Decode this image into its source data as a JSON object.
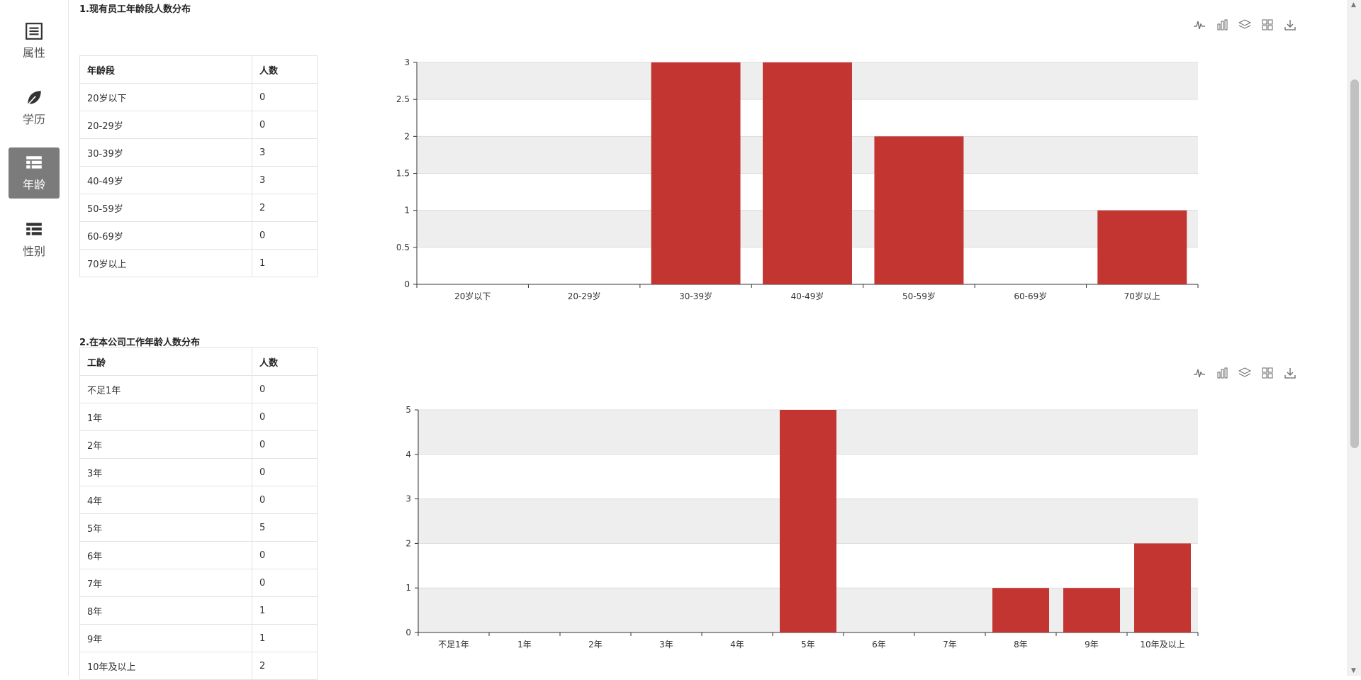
{
  "sidebar": {
    "items": [
      {
        "label": "属性",
        "icon": "list-icon"
      },
      {
        "label": "学历",
        "icon": "leaf-icon"
      },
      {
        "label": "年龄",
        "icon": "table-icon",
        "active": true
      },
      {
        "label": "性别",
        "icon": "table-icon"
      }
    ]
  },
  "section1": {
    "title": "1.现有员工年龄段人数分布",
    "table": {
      "headers": [
        "年龄段",
        "人数"
      ],
      "rows": [
        [
          "20岁以下",
          "0"
        ],
        [
          "20-29岁",
          "0"
        ],
        [
          "30-39岁",
          "3"
        ],
        [
          "40-49岁",
          "3"
        ],
        [
          "50-59岁",
          "2"
        ],
        [
          "60-69岁",
          "0"
        ],
        [
          "70岁以上",
          "1"
        ]
      ]
    }
  },
  "section2": {
    "title": "2.在本公司工作年龄人数分布",
    "table": {
      "headers": [
        "工龄",
        "人数"
      ],
      "rows": [
        [
          "不足1年",
          "0"
        ],
        [
          "1年",
          "0"
        ],
        [
          "2年",
          "0"
        ],
        [
          "3年",
          "0"
        ],
        [
          "4年",
          "0"
        ],
        [
          "5年",
          "5"
        ],
        [
          "6年",
          "0"
        ],
        [
          "7年",
          "0"
        ],
        [
          "8年",
          "1"
        ],
        [
          "9年",
          "1"
        ],
        [
          "10年及以上",
          "2"
        ]
      ]
    }
  },
  "colors": {
    "bar": "#c23531",
    "band": "#eeeeee",
    "grid": "#dddddd",
    "axis": "#333333"
  },
  "chart_data": [
    {
      "type": "bar",
      "categories": [
        "20岁以下",
        "20-29岁",
        "30-39岁",
        "40-49岁",
        "50-59岁",
        "60-69岁",
        "70岁以上"
      ],
      "values": [
        0,
        0,
        3,
        3,
        2,
        0,
        1
      ],
      "yticks": [
        "0",
        "0.5",
        "1",
        "1.5",
        "2",
        "2.5",
        "3"
      ],
      "ylim": [
        0,
        3
      ],
      "grid": true
    },
    {
      "type": "bar",
      "categories": [
        "不足1年",
        "1年",
        "2年",
        "3年",
        "4年",
        "5年",
        "6年",
        "7年",
        "8年",
        "9年",
        "10年及以上"
      ],
      "values": [
        0,
        0,
        0,
        0,
        0,
        5,
        0,
        0,
        1,
        1,
        2
      ],
      "yticks": [
        "0",
        "1",
        "2",
        "3",
        "4",
        "5"
      ],
      "ylim": [
        0,
        5
      ],
      "grid": true
    }
  ],
  "toolbox": [
    "line-chart-icon",
    "bar-chart-icon",
    "stack-icon",
    "data-view-icon",
    "download-icon"
  ]
}
